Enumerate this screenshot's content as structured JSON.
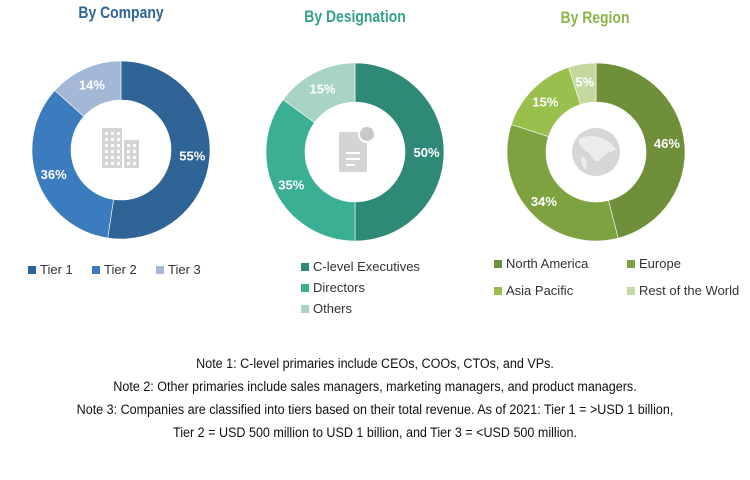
{
  "chart_data": [
    {
      "type": "pie",
      "variant": "donut",
      "title": "By Company",
      "title_color": "#2e6496",
      "center_icon": "building-icon",
      "categories": [
        "Tier 1",
        "Tier 2",
        "Tier 3"
      ],
      "values": [
        55,
        36,
        14
      ],
      "labels": [
        "55%",
        "36%",
        "14%"
      ],
      "colors": [
        "#2e6496",
        "#3a7cbd",
        "#a3b8d6"
      ],
      "legend_position": "bottom"
    },
    {
      "type": "pie",
      "variant": "donut",
      "title": "By Designation",
      "title_color": "#35a08b",
      "center_icon": "document-icon",
      "categories": [
        "C-level Executives",
        "Directors",
        "Others"
      ],
      "values": [
        50,
        35,
        15
      ],
      "labels": [
        "50%",
        "35%",
        "15%"
      ],
      "colors": [
        "#2e8a76",
        "#3aaf94",
        "#a8d4c6"
      ],
      "legend_position": "bottom"
    },
    {
      "type": "pie",
      "variant": "donut",
      "title": "By Region",
      "title_color": "#8db44a",
      "center_icon": "globe-icon",
      "categories": [
        "North America",
        "Europe",
        "Asia Pacific",
        "Rest of the World"
      ],
      "values": [
        46,
        34,
        15,
        5
      ],
      "labels": [
        "46%",
        "34%",
        "15%",
        "5%"
      ],
      "colors": [
        "#6f8f3a",
        "#7ea23f",
        "#99c04c",
        "#c3d9a0"
      ],
      "legend_position": "bottom"
    }
  ],
  "notes": [
    "Note 1: C-level primaries include CEOs, COOs, CTOs, and VPs.",
    "Note 2: Other primaries include sales managers, marketing managers, and product managers.",
    "Note 3: Companies are classified into tiers based on their total revenue. As of 2021: Tier 1 = >USD 1 billion,",
    "Tier 2 = USD 500 million to USD 1 billion, and Tier 3 = <USD 500 million."
  ]
}
